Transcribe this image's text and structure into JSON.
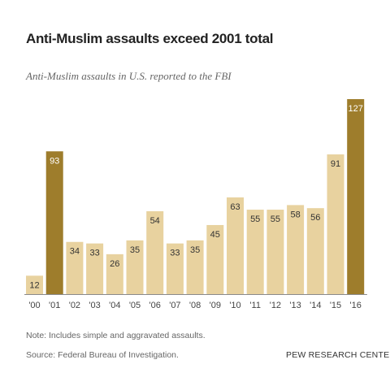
{
  "chart_data": {
    "type": "bar",
    "title": "Anti-Muslim assaults exceed 2001 total",
    "subtitle": "Anti-Muslim assaults in U.S. reported to the FBI",
    "categories": [
      "'00",
      "'01",
      "'02",
      "'03",
      "'04",
      "'05",
      "'06",
      "'07",
      "'08",
      "'09",
      "'10",
      "'11",
      "'12",
      "'13",
      "'14",
      "'15",
      "'16"
    ],
    "values": [
      12,
      93,
      34,
      33,
      26,
      35,
      54,
      33,
      35,
      45,
      63,
      55,
      55,
      58,
      56,
      91,
      127
    ],
    "highlight_categories": [
      "'01",
      "'16"
    ],
    "colors": {
      "base": "#e8d29f",
      "highlight": "#9e7d2c",
      "label_on_base": "#333333",
      "label_on_highlight": "#ffffff"
    },
    "xlabel": "",
    "ylabel": "",
    "ylim": [
      0,
      127
    ],
    "grid": false,
    "legend": "none"
  },
  "footer": {
    "note": "Note: Includes simple and aggravated assaults.",
    "source": "Source: Federal Bureau of Investigation.",
    "brand": "PEW RESEARCH CENTER"
  }
}
